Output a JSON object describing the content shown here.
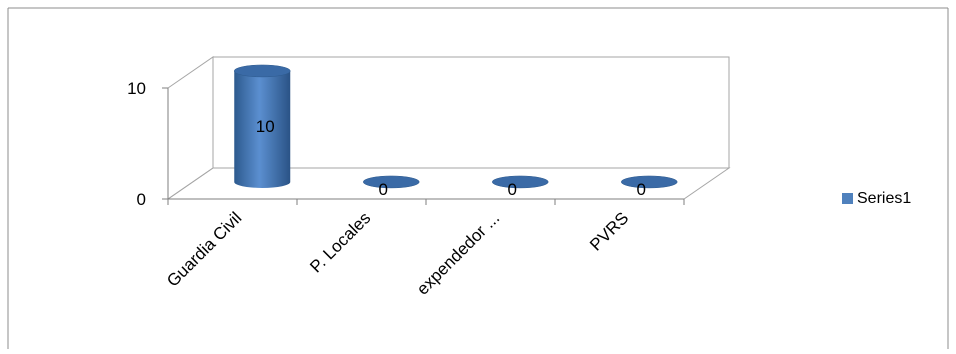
{
  "chart_data": {
    "type": "bar",
    "style": "3d-cylinder",
    "categories": [
      "Guardia Civil",
      "P. Locales",
      "expendedor ...",
      "PVRS"
    ],
    "series": [
      {
        "name": "Series1",
        "values": [
          10,
          0,
          0,
          0
        ],
        "color": "#4F81BD"
      }
    ],
    "data_labels": [
      "10",
      "0",
      "0",
      "0"
    ],
    "y_ticks": [
      0,
      10
    ],
    "ylim": [
      0,
      10
    ],
    "legend": {
      "position": "right",
      "label": "Series1"
    },
    "grid": false
  }
}
